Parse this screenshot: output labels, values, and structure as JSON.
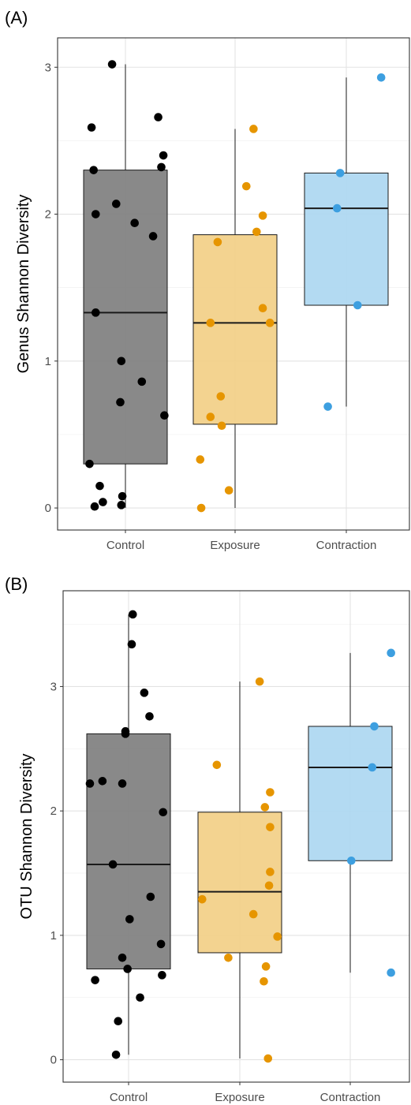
{
  "chart_data": [
    {
      "panel_label": "(A)",
      "type": "box",
      "ylabel": "Genus Shannon Diversity",
      "xlabel": "",
      "categories": [
        "Control",
        "Exposure",
        "Contraction"
      ],
      "ylim": [
        -0.15,
        3.2
      ],
      "yticks": [
        0,
        1,
        2,
        3
      ],
      "grid": true,
      "colors": {
        "Control": {
          "fill": "#7f7f7f",
          "point": "#000000"
        },
        "Exposure": {
          "fill": "#f2cf87",
          "point": "#e69500"
        },
        "Contraction": {
          "fill": "#acd7f1",
          "point": "#3d9fe0"
        }
      },
      "boxes": [
        {
          "group": "Control",
          "q1": 0.3,
          "median": 1.33,
          "q3": 2.3,
          "whisker_low": 0.0,
          "whisker_high": 3.02
        },
        {
          "group": "Exposure",
          "q1": 0.57,
          "median": 1.26,
          "q3": 1.86,
          "whisker_low": 0.0,
          "whisker_high": 2.58
        },
        {
          "group": "Contraction",
          "q1": 1.38,
          "median": 2.04,
          "q3": 2.28,
          "whisker_low": 0.69,
          "whisker_high": 2.93
        }
      ],
      "points": [
        {
          "group": "Control",
          "jitter": -0.13,
          "y": 3.02
        },
        {
          "group": "Control",
          "jitter": -0.33,
          "y": 2.59
        },
        {
          "group": "Control",
          "jitter": 0.32,
          "y": 2.66
        },
        {
          "group": "Control",
          "jitter": 0.37,
          "y": 2.4
        },
        {
          "group": "Control",
          "jitter": 0.35,
          "y": 2.32
        },
        {
          "group": "Control",
          "jitter": -0.31,
          "y": 2.3
        },
        {
          "group": "Control",
          "jitter": -0.09,
          "y": 2.07
        },
        {
          "group": "Control",
          "jitter": -0.29,
          "y": 2.0
        },
        {
          "group": "Control",
          "jitter": 0.09,
          "y": 1.94
        },
        {
          "group": "Control",
          "jitter": 0.27,
          "y": 1.85
        },
        {
          "group": "Control",
          "jitter": -0.29,
          "y": 1.33
        },
        {
          "group": "Control",
          "jitter": -0.04,
          "y": 1.0
        },
        {
          "group": "Control",
          "jitter": 0.16,
          "y": 0.86
        },
        {
          "group": "Control",
          "jitter": -0.05,
          "y": 0.72
        },
        {
          "group": "Control",
          "jitter": 0.38,
          "y": 0.63
        },
        {
          "group": "Control",
          "jitter": -0.35,
          "y": 0.3
        },
        {
          "group": "Control",
          "jitter": -0.25,
          "y": 0.15
        },
        {
          "group": "Control",
          "jitter": -0.03,
          "y": 0.08
        },
        {
          "group": "Control",
          "jitter": -0.22,
          "y": 0.04
        },
        {
          "group": "Control",
          "jitter": -0.3,
          "y": 0.01
        },
        {
          "group": "Control",
          "jitter": -0.04,
          "y": 0.02
        },
        {
          "group": "Exposure",
          "jitter": 0.18,
          "y": 2.58
        },
        {
          "group": "Exposure",
          "jitter": 0.11,
          "y": 2.19
        },
        {
          "group": "Exposure",
          "jitter": 0.27,
          "y": 1.99
        },
        {
          "group": "Exposure",
          "jitter": 0.21,
          "y": 1.88
        },
        {
          "group": "Exposure",
          "jitter": -0.17,
          "y": 1.81
        },
        {
          "group": "Exposure",
          "jitter": 0.27,
          "y": 1.36
        },
        {
          "group": "Exposure",
          "jitter": -0.24,
          "y": 1.26
        },
        {
          "group": "Exposure",
          "jitter": 0.34,
          "y": 1.26
        },
        {
          "group": "Exposure",
          "jitter": -0.14,
          "y": 0.76
        },
        {
          "group": "Exposure",
          "jitter": -0.24,
          "y": 0.62
        },
        {
          "group": "Exposure",
          "jitter": -0.13,
          "y": 0.56
        },
        {
          "group": "Exposure",
          "jitter": -0.34,
          "y": 0.33
        },
        {
          "group": "Exposure",
          "jitter": -0.06,
          "y": 0.12
        },
        {
          "group": "Exposure",
          "jitter": -0.33,
          "y": 0.0
        },
        {
          "group": "Contraction",
          "jitter": 0.34,
          "y": 2.93
        },
        {
          "group": "Contraction",
          "jitter": -0.06,
          "y": 2.28
        },
        {
          "group": "Contraction",
          "jitter": -0.09,
          "y": 2.04
        },
        {
          "group": "Contraction",
          "jitter": 0.11,
          "y": 1.38
        },
        {
          "group": "Contraction",
          "jitter": -0.18,
          "y": 0.69
        }
      ]
    },
    {
      "panel_label": "(B)",
      "type": "box",
      "ylabel": "OTU Shannon Diversity",
      "xlabel": "",
      "categories": [
        "Control",
        "Exposure",
        "Contraction"
      ],
      "ylim": [
        -0.18,
        3.77
      ],
      "yticks": [
        0,
        1,
        2,
        3
      ],
      "grid": true,
      "colors": {
        "Control": {
          "fill": "#7f7f7f",
          "point": "#000000"
        },
        "Exposure": {
          "fill": "#f2cf87",
          "point": "#e69500"
        },
        "Contraction": {
          "fill": "#acd7f1",
          "point": "#3d9fe0"
        }
      },
      "boxes": [
        {
          "group": "Control",
          "q1": 0.73,
          "median": 1.57,
          "q3": 2.62,
          "whisker_low": 0.04,
          "whisker_high": 3.58
        },
        {
          "group": "Exposure",
          "q1": 0.86,
          "median": 1.35,
          "q3": 1.99,
          "whisker_low": 0.01,
          "whisker_high": 3.04
        },
        {
          "group": "Contraction",
          "q1": 1.6,
          "median": 2.35,
          "q3": 2.68,
          "whisker_low": 0.7,
          "whisker_high": 3.27
        }
      ],
      "points": [
        {
          "group": "Control",
          "jitter": 0.04,
          "y": 3.58
        },
        {
          "group": "Control",
          "jitter": 0.03,
          "y": 3.34
        },
        {
          "group": "Control",
          "jitter": 0.15,
          "y": 2.95
        },
        {
          "group": "Control",
          "jitter": 0.2,
          "y": 2.76
        },
        {
          "group": "Control",
          "jitter": -0.03,
          "y": 2.64
        },
        {
          "group": "Control",
          "jitter": -0.03,
          "y": 2.62
        },
        {
          "group": "Control",
          "jitter": -0.25,
          "y": 2.24
        },
        {
          "group": "Control",
          "jitter": -0.37,
          "y": 2.22
        },
        {
          "group": "Control",
          "jitter": -0.06,
          "y": 2.22
        },
        {
          "group": "Control",
          "jitter": 0.33,
          "y": 1.99
        },
        {
          "group": "Control",
          "jitter": -0.15,
          "y": 1.57
        },
        {
          "group": "Control",
          "jitter": 0.21,
          "y": 1.31
        },
        {
          "group": "Control",
          "jitter": 0.01,
          "y": 1.13
        },
        {
          "group": "Control",
          "jitter": 0.31,
          "y": 0.93
        },
        {
          "group": "Control",
          "jitter": -0.06,
          "y": 0.82
        },
        {
          "group": "Control",
          "jitter": -0.01,
          "y": 0.73
        },
        {
          "group": "Control",
          "jitter": 0.32,
          "y": 0.68
        },
        {
          "group": "Control",
          "jitter": -0.32,
          "y": 0.64
        },
        {
          "group": "Control",
          "jitter": 0.11,
          "y": 0.5
        },
        {
          "group": "Control",
          "jitter": -0.1,
          "y": 0.31
        },
        {
          "group": "Control",
          "jitter": -0.12,
          "y": 0.04
        },
        {
          "group": "Exposure",
          "jitter": 0.19,
          "y": 3.04
        },
        {
          "group": "Exposure",
          "jitter": -0.22,
          "y": 2.37
        },
        {
          "group": "Exposure",
          "jitter": 0.29,
          "y": 2.15
        },
        {
          "group": "Exposure",
          "jitter": 0.24,
          "y": 2.03
        },
        {
          "group": "Exposure",
          "jitter": 0.29,
          "y": 1.87
        },
        {
          "group": "Exposure",
          "jitter": 0.29,
          "y": 1.51
        },
        {
          "group": "Exposure",
          "jitter": 0.28,
          "y": 1.4
        },
        {
          "group": "Exposure",
          "jitter": -0.36,
          "y": 1.29
        },
        {
          "group": "Exposure",
          "jitter": 0.13,
          "y": 1.17
        },
        {
          "group": "Exposure",
          "jitter": 0.36,
          "y": 0.99
        },
        {
          "group": "Exposure",
          "jitter": -0.11,
          "y": 0.82
        },
        {
          "group": "Exposure",
          "jitter": 0.25,
          "y": 0.75
        },
        {
          "group": "Exposure",
          "jitter": 0.23,
          "y": 0.63
        },
        {
          "group": "Exposure",
          "jitter": 0.27,
          "y": 0.01
        },
        {
          "group": "Contraction",
          "jitter": 0.39,
          "y": 3.27
        },
        {
          "group": "Contraction",
          "jitter": 0.23,
          "y": 2.68
        },
        {
          "group": "Contraction",
          "jitter": 0.21,
          "y": 2.35
        },
        {
          "group": "Contraction",
          "jitter": 0.01,
          "y": 1.6
        },
        {
          "group": "Contraction",
          "jitter": 0.39,
          "y": 0.7
        }
      ]
    }
  ]
}
